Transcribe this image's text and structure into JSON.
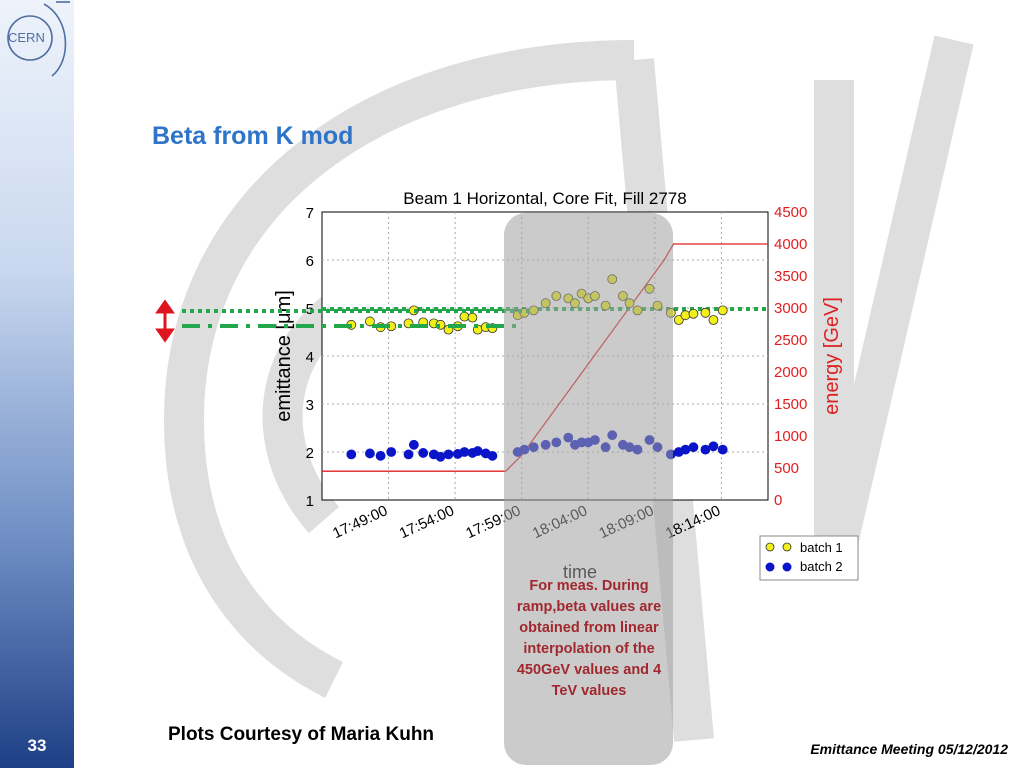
{
  "slide": {
    "title": "Beta from K mod",
    "page_number": "33",
    "courtesy": "Plots Courtesy of Maria Kuhn",
    "meeting": "Emittance Meeting 05/12/2012",
    "logo_text": "CERN",
    "overlay_note": "For meas. During ramp,beta values are obtained from linear interpolation of the 450GeV values and 4 TeV values"
  },
  "colors": {
    "title": "#2e74c9",
    "batch1": "#f2ef1a",
    "batch2": "#0a14c8",
    "energy": "#e02020",
    "marker_green": "#22a84a",
    "indicator_arrow": "#e0141e",
    "note_text": "#a0282e"
  },
  "chart_data": {
    "type": "scatter",
    "title": "Beam 1 Horizontal, Core Fit, Fill 2778",
    "xlabel": "time",
    "ylabel": "emittance [μm]",
    "y2label": "energy [GeV]",
    "x_ticks": [
      "17:49:00",
      "17:54:00",
      "17:59:00",
      "18:04:00",
      "18:09:00",
      "18:14:00"
    ],
    "x_tick_minutes": [
      1069,
      1074,
      1079,
      1084,
      1089,
      1094
    ],
    "xlim_minutes": [
      1064,
      1097.5
    ],
    "ylim": [
      1,
      7
    ],
    "y_ticks": [
      1,
      2,
      3,
      4,
      5,
      6,
      7
    ],
    "y2lim": [
      0,
      4500
    ],
    "y2_ticks": [
      0,
      500,
      1000,
      1500,
      2000,
      2500,
      3000,
      3500,
      4000,
      4500
    ],
    "grid": true,
    "legend_position": "bottom-right, outside plot",
    "series": [
      {
        "name": "batch 1",
        "x_minutes": [
          1066.2,
          1067.6,
          1068.4,
          1069.2,
          1070.5,
          1070.9,
          1071.6,
          1072.4,
          1072.9,
          1073.5,
          1074.2,
          1074.7,
          1075.3,
          1075.7,
          1076.3,
          1076.8,
          1078.7,
          1079.2,
          1079.9,
          1080.8,
          1081.6,
          1082.5,
          1083.0,
          1083.5,
          1084.0,
          1084.5,
          1085.3,
          1085.8,
          1086.6,
          1087.1,
          1087.7,
          1088.6,
          1089.2,
          1090.2,
          1090.8,
          1091.3,
          1091.9,
          1092.8,
          1093.4,
          1094.1
        ],
        "values": [
          4.65,
          4.72,
          4.6,
          4.62,
          4.68,
          4.95,
          4.7,
          4.68,
          4.65,
          4.55,
          4.62,
          4.82,
          4.8,
          4.55,
          4.6,
          4.58,
          4.85,
          4.9,
          4.95,
          5.1,
          5.25,
          5.2,
          5.1,
          5.3,
          5.2,
          5.25,
          5.05,
          5.6,
          5.25,
          5.1,
          4.95,
          5.4,
          5.05,
          4.9,
          4.75,
          4.85,
          4.88,
          4.9,
          4.75,
          4.95
        ]
      },
      {
        "name": "batch 2",
        "x_minutes": [
          1066.2,
          1067.6,
          1068.4,
          1069.2,
          1070.5,
          1070.9,
          1071.6,
          1072.4,
          1072.9,
          1073.5,
          1074.2,
          1074.7,
          1075.3,
          1075.7,
          1076.3,
          1076.8,
          1078.7,
          1079.2,
          1079.9,
          1080.8,
          1081.6,
          1082.5,
          1083.0,
          1083.5,
          1084.0,
          1084.5,
          1085.3,
          1085.8,
          1086.6,
          1087.1,
          1087.7,
          1088.6,
          1089.2,
          1090.2,
          1090.8,
          1091.3,
          1091.9,
          1092.8,
          1093.4,
          1094.1
        ],
        "values": [
          1.95,
          1.97,
          1.92,
          2.0,
          1.95,
          2.15,
          1.98,
          1.95,
          1.9,
          1.95,
          1.96,
          2.0,
          1.98,
          2.02,
          1.97,
          1.92,
          2.0,
          2.05,
          2.1,
          2.15,
          2.2,
          2.3,
          2.15,
          2.2,
          2.2,
          2.25,
          2.1,
          2.35,
          2.15,
          2.1,
          2.05,
          2.25,
          2.1,
          1.95,
          2.0,
          2.05,
          2.1,
          2.05,
          2.12,
          2.05
        ]
      },
      {
        "name": "energy",
        "axis": "right",
        "x_minutes": [
          1064,
          1077.8,
          1079,
          1089.7,
          1090.4,
          1097.5
        ],
        "values": [
          450,
          450,
          700,
          3750,
          4000,
          4000
        ]
      }
    ],
    "reference_lines": [
      {
        "style": "dotted",
        "value": 4.98
      },
      {
        "style": "dash-dot",
        "value": 4.68
      }
    ]
  }
}
